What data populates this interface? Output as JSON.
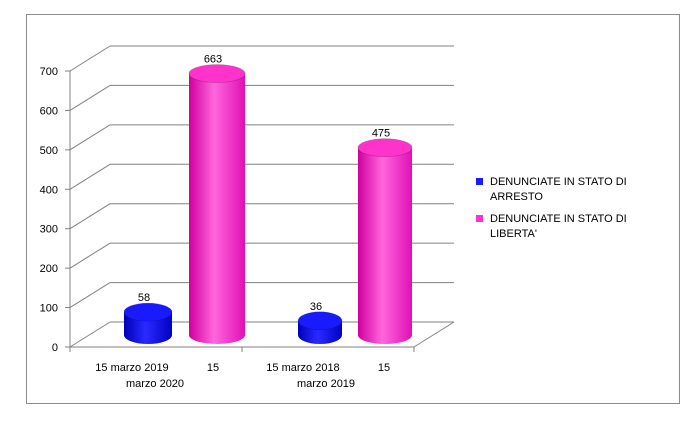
{
  "chart_data": {
    "type": "bar",
    "style": "3d-cylinder",
    "categories": [
      {
        "line1": "15 marzo 2019",
        "line2": "marzo 2020",
        "side": "15"
      },
      {
        "line1": "15 marzo 2018",
        "line2": "marzo 2019",
        "side": "15"
      }
    ],
    "series": [
      {
        "name": "DENUNCIATE  IN STATO DI ARRESTO",
        "legend_lines": [
          "DENUNCIATE  IN STATO DI",
          "ARRESTO"
        ],
        "values": [
          58,
          36
        ],
        "color": "#1a1aff"
      },
      {
        "name": "DENUNCIATE  IN STATO DI LIBERTA'",
        "legend_lines": [
          "DENUNCIATE  IN STATO DI",
          "LIBERTA'"
        ],
        "values": [
          663,
          475
        ],
        "color": "#ff33cc"
      }
    ],
    "ylim": [
      0,
      700
    ],
    "yticks": [
      0,
      100,
      200,
      300,
      400,
      500,
      600,
      700
    ],
    "grid": true,
    "legend": "right",
    "title": "",
    "xlabel": "",
    "ylabel": ""
  }
}
